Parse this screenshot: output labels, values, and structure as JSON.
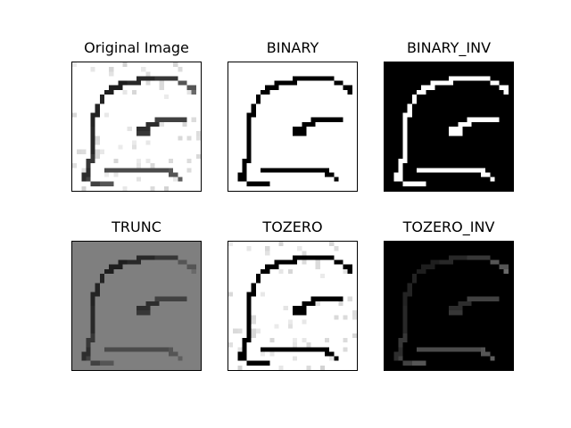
{
  "figure": {
    "panels": [
      {
        "title": "Original Image",
        "style": "original"
      },
      {
        "title": "BINARY",
        "style": "binary"
      },
      {
        "title": "BINARY_INV",
        "style": "binary_inv"
      },
      {
        "title": "TRUNC",
        "style": "trunc"
      },
      {
        "title": "TOZERO",
        "style": "tozero"
      },
      {
        "title": "TOZERO_INV",
        "style": "tozero_inv"
      }
    ],
    "colors": {
      "border": "#000000",
      "page_background": "#ffffff",
      "trunc_background": "#808080"
    }
  }
}
